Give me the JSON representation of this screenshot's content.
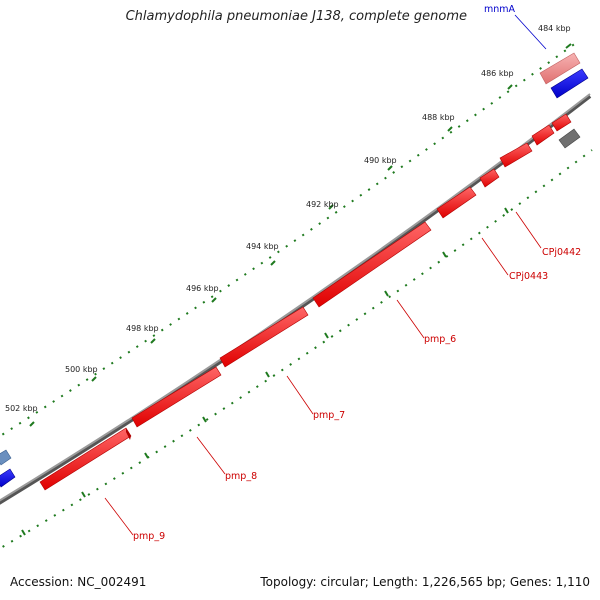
{
  "title": "Chlamydophila pneumoniae J138, complete genome",
  "footer": {
    "accession": "Accession: NC_002491",
    "stats": "Topology: circular; Length: 1,226,565 bp; Genes: 1,110"
  },
  "colors": {
    "backbone": "#808080",
    "tick": "#1f7a1f",
    "forward_gene": "#ff0000",
    "reverse_gene": "#ff0000",
    "faded_gene": "#f08080",
    "blue_gene": "#0000ee",
    "gray_gene": "#707070",
    "label_red": "#cc0000",
    "label_blue": "#0000cc"
  },
  "scale_labels": [
    "484 kbp",
    "486 kbp",
    "488 kbp",
    "490 kbp",
    "492 kbp",
    "494 kbp",
    "496 kbp",
    "498 kbp",
    "500 kbp",
    "502 kbp"
  ],
  "gene_labels": [
    "mnmA",
    "CPj0442",
    "CPj0443",
    "pmp_6",
    "pmp_7",
    "pmp_8",
    "pmp_9"
  ]
}
